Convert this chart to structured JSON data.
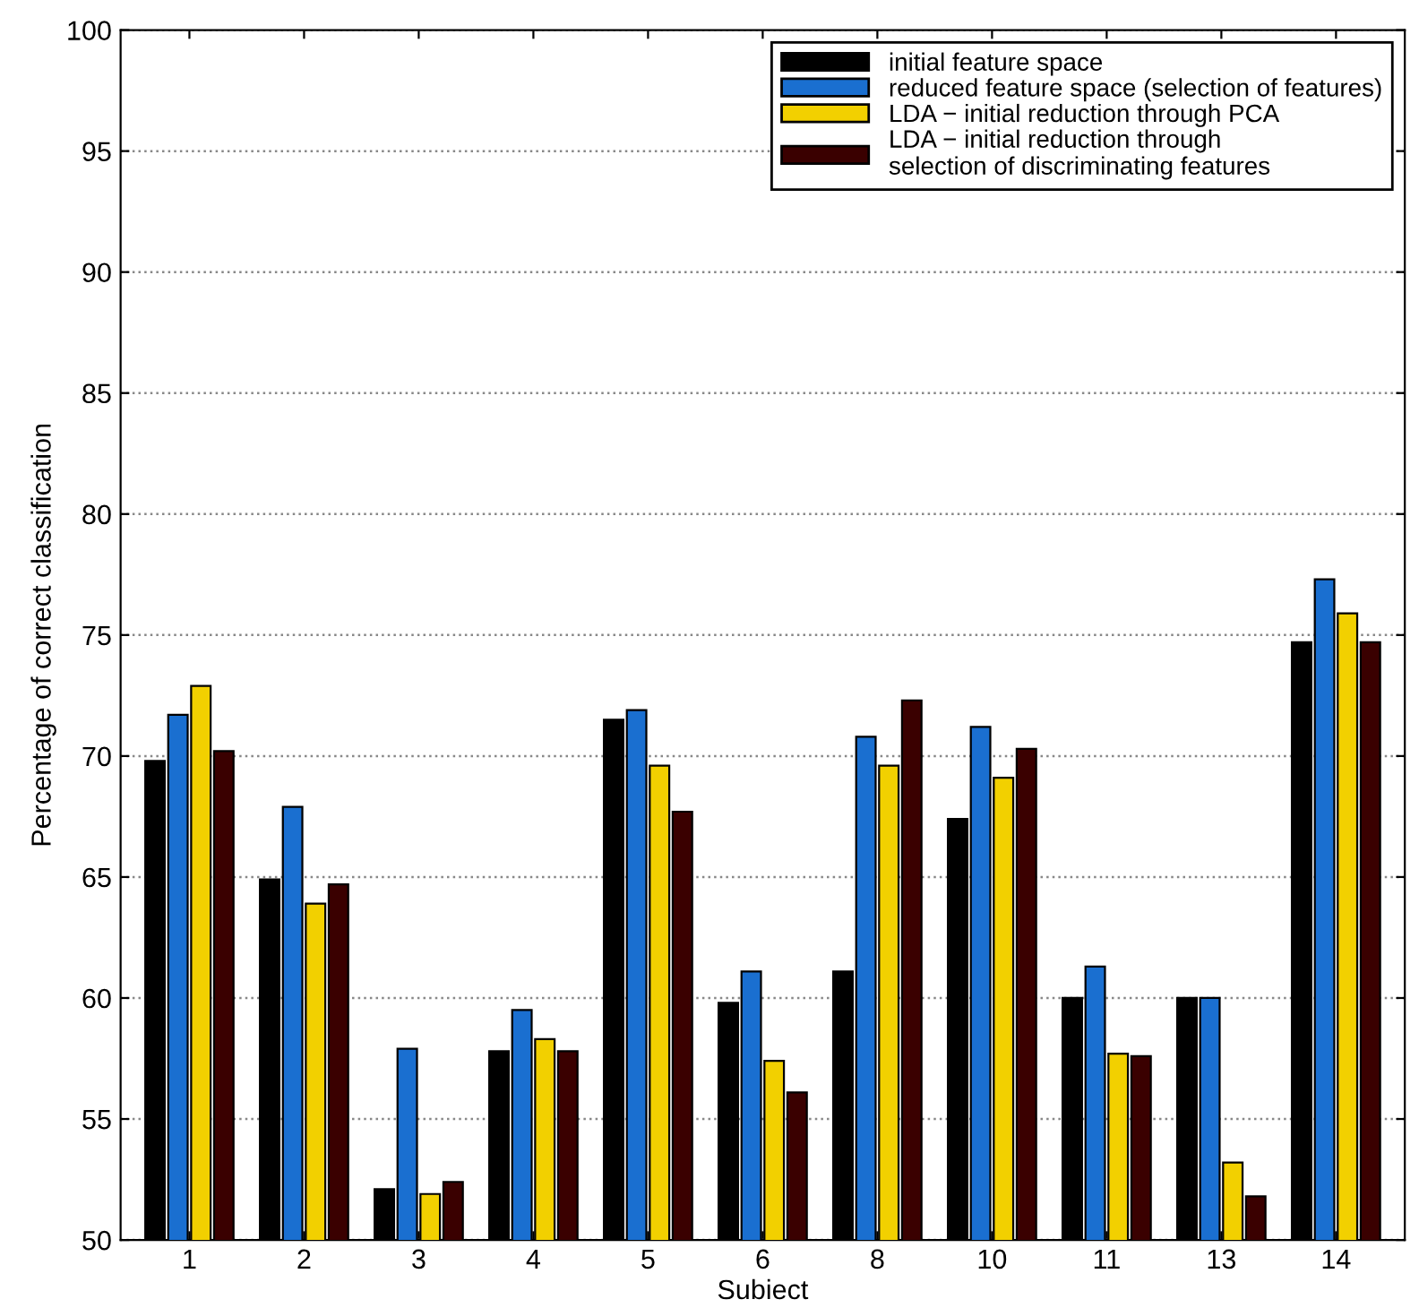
{
  "chart_data": {
    "type": "bar",
    "xlabel": "Subiect",
    "ylabel": "Percentage of correct classification",
    "categories": [
      "1",
      "2",
      "3",
      "4",
      "5",
      "6",
      "8",
      "10",
      "11",
      "13",
      "14"
    ],
    "series": [
      {
        "name": "initial feature space",
        "color": "#000000",
        "values": [
          69.8,
          64.9,
          52.1,
          57.8,
          71.5,
          59.8,
          61.1,
          67.4,
          60.0,
          60.0,
          74.7
        ]
      },
      {
        "name": "reduced feature space (selection of features)",
        "color": "#1a6fd0",
        "values": [
          71.7,
          67.9,
          57.9,
          59.5,
          71.9,
          61.1,
          70.8,
          71.2,
          61.3,
          60.0,
          77.3
        ]
      },
      {
        "name": "LDA − initial reduction through PCA",
        "color": "#f2d000",
        "values": [
          72.9,
          63.9,
          51.9,
          58.3,
          69.6,
          57.4,
          69.6,
          69.1,
          57.7,
          53.2,
          75.9
        ]
      },
      {
        "name": "LDA − initial reduction through\nselection of discriminating features",
        "color": "#3a0000",
        "values": [
          70.2,
          64.7,
          52.4,
          57.8,
          67.7,
          56.1,
          72.3,
          70.3,
          57.6,
          51.8,
          74.7
        ]
      }
    ],
    "ylim": [
      50,
      100
    ],
    "yticks": [
      50,
      55,
      60,
      65,
      70,
      75,
      80,
      85,
      90,
      95,
      100
    ],
    "grid": "y",
    "legend": "top right"
  }
}
